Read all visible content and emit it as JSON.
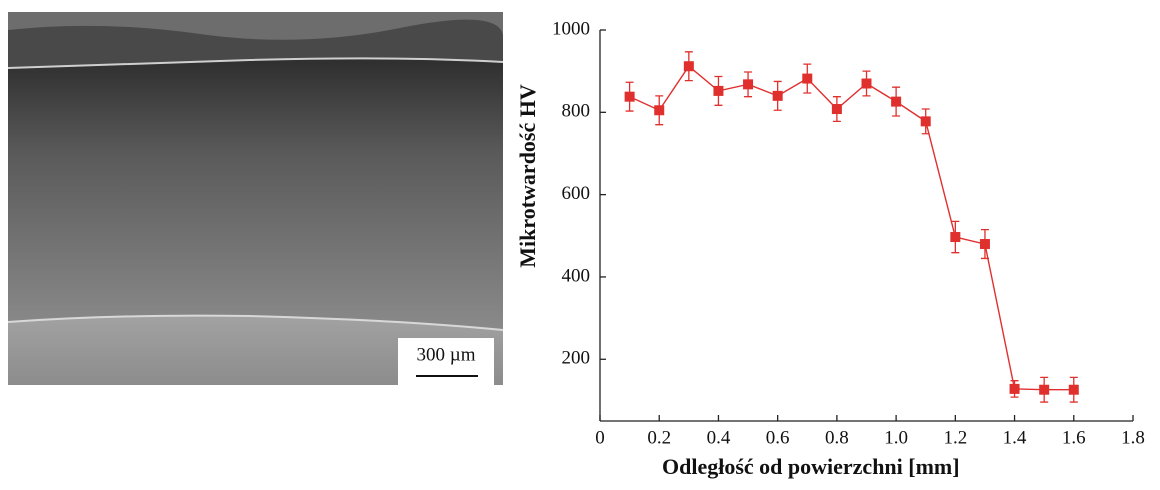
{
  "image": {
    "scale_label": "300 µm"
  },
  "chart_data": {
    "type": "line",
    "x_label": "Odległość od powierzchni [mm]",
    "y_label": "Mikrotwardość HV",
    "x": [
      0.1,
      0.2,
      0.3,
      0.4,
      0.5,
      0.6,
      0.7,
      0.8,
      0.9,
      1.0,
      1.1,
      1.2,
      1.3,
      1.4,
      1.5,
      1.6
    ],
    "series": [
      {
        "color": "#e0302e",
        "values": [
          838,
          805,
          912,
          852,
          868,
          840,
          882,
          808,
          870,
          826,
          778,
          497,
          480,
          128,
          126,
          126
        ],
        "errors": [
          35,
          35,
          35,
          35,
          30,
          35,
          35,
          30,
          30,
          35,
          30,
          38,
          35,
          20,
          30,
          30
        ]
      }
    ],
    "xlim": [
      0,
      1.8
    ],
    "xticks": [
      0,
      0.2,
      0.4,
      0.6,
      0.8,
      {
        "value": 1,
        "label": "1.0"
      },
      1.2,
      1.4,
      1.6,
      1.8
    ],
    "ylim": [
      50,
      1000
    ],
    "yticks": [
      200,
      400,
      600,
      800,
      1000
    ]
  }
}
